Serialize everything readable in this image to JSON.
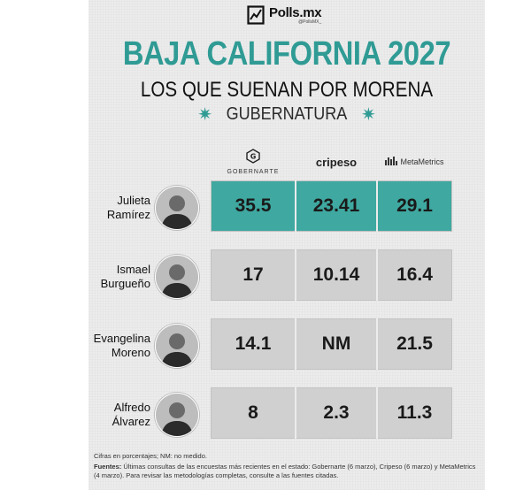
{
  "brand": {
    "name": "Polls.mx",
    "handle": "@PollsMX_"
  },
  "header": {
    "title": "BAJA CALIFORNIA 2027",
    "subtitle": "LOS QUE SUENAN POR MORENA",
    "section": "GUBERNATURA"
  },
  "sources": [
    "GOBERNARTE",
    "cripeso",
    "MetaMetrics"
  ],
  "colors": {
    "accent": "#2f9b94",
    "highlight_cell": "#3fa8a0",
    "cell": "#d0d0d0",
    "background": "#ececec"
  },
  "chart_data": {
    "type": "table",
    "columns": [
      "GOBERNARTE",
      "cripeso",
      "MetaMetrics"
    ],
    "rows": [
      {
        "name": "Julieta\nRamírez",
        "values": [
          "35.5",
          "23.41",
          "29.1"
        ],
        "highlight": true
      },
      {
        "name": "Ismael\nBurgueño",
        "values": [
          "17",
          "10.14",
          "16.4"
        ],
        "highlight": false
      },
      {
        "name": "Evangelina\nMoreno",
        "values": [
          "14.1",
          "NM",
          "21.5"
        ],
        "highlight": false
      },
      {
        "name": "Alfredo\nÁlvarez",
        "values": [
          "8",
          "2.3",
          "11.3"
        ],
        "highlight": false
      }
    ]
  },
  "notes": {
    "units": "Cifras en porcentajes; NM: no medido.",
    "sources_label": "Fuentes:",
    "sources_text": " Últimas consultas de las encuestas más recientes en el estado: Gobernarte (6 marzo), Cripeso (6 marzo) y MetaMetrics (4 marzo). Para revisar las metodologías completas, consulte a las fuentes citadas."
  }
}
